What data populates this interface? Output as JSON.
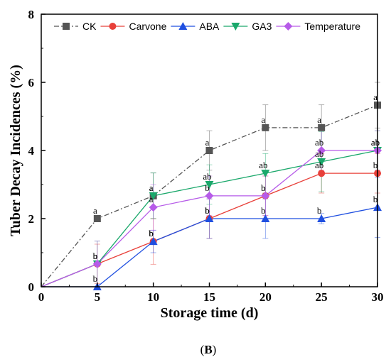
{
  "chart_data": {
    "type": "line",
    "xlabel": "Storage time (d)",
    "ylabel": "Tuber Decay Incidences (%)",
    "panel_label": {
      "open": "(",
      "letter": "B",
      "close": ")"
    },
    "xlim": [
      0,
      30
    ],
    "ylim": [
      0,
      8
    ],
    "xticks": [
      0,
      5,
      10,
      15,
      20,
      25,
      30
    ],
    "yticks": [
      0,
      2,
      4,
      6,
      8
    ],
    "x": [
      0,
      5,
      10,
      15,
      20,
      25,
      30
    ],
    "legend_position": "top",
    "series": [
      {
        "name": "CK",
        "color": "#555555",
        "marker": "square",
        "dash": "dashdot",
        "values": [
          0,
          2.0,
          2.67,
          4.0,
          4.67,
          4.67,
          5.33
        ],
        "errors": [
          0,
          0,
          0.67,
          0.58,
          0.67,
          0.67,
          0.67
        ],
        "labels": [
          "",
          "a",
          "a",
          "a",
          "a",
          "a",
          "a"
        ]
      },
      {
        "name": "Carvone",
        "color": "#e8403a",
        "marker": "circle",
        "dash": "solid",
        "values": [
          0,
          0.67,
          1.33,
          2.0,
          2.67,
          3.33,
          3.33
        ],
        "errors": [
          0,
          0.58,
          0.67,
          0.58,
          0.58,
          0.58,
          0.58
        ],
        "labels": [
          "",
          "b",
          "b",
          "b",
          "b",
          "ab",
          "b"
        ]
      },
      {
        "name": "ABA",
        "color": "#1f4fe0",
        "marker": "triangle-up",
        "dash": "solid",
        "values": [
          0,
          0.0,
          1.33,
          2.0,
          2.0,
          2.0,
          2.33
        ],
        "errors": [
          0,
          0,
          0.33,
          0.58,
          0.58,
          0.15,
          0.88
        ],
        "labels": [
          "",
          "b",
          "b",
          "b",
          "b",
          "b",
          "b"
        ]
      },
      {
        "name": "GA3",
        "color": "#1aa86b",
        "marker": "triangle-down",
        "dash": "solid",
        "values": [
          0,
          0.67,
          2.67,
          3.0,
          3.33,
          3.67,
          4.0
        ],
        "errors": [
          0,
          0.67,
          0.67,
          0.58,
          0.58,
          0.88,
          0.58
        ],
        "labels": [
          "",
          "b",
          "a",
          "ab",
          "ab",
          "ab",
          "ab"
        ]
      },
      {
        "name": "Temperature",
        "color": "#b65be8",
        "marker": "diamond",
        "dash": "solid",
        "values": [
          0,
          0.67,
          2.33,
          2.67,
          2.67,
          4.0,
          4.0
        ],
        "errors": [
          0,
          0.67,
          0.67,
          0.58,
          0.58,
          0.58,
          0.58
        ],
        "labels": [
          "",
          "b",
          "a",
          "b",
          "b",
          "ab",
          "ab"
        ]
      }
    ]
  }
}
